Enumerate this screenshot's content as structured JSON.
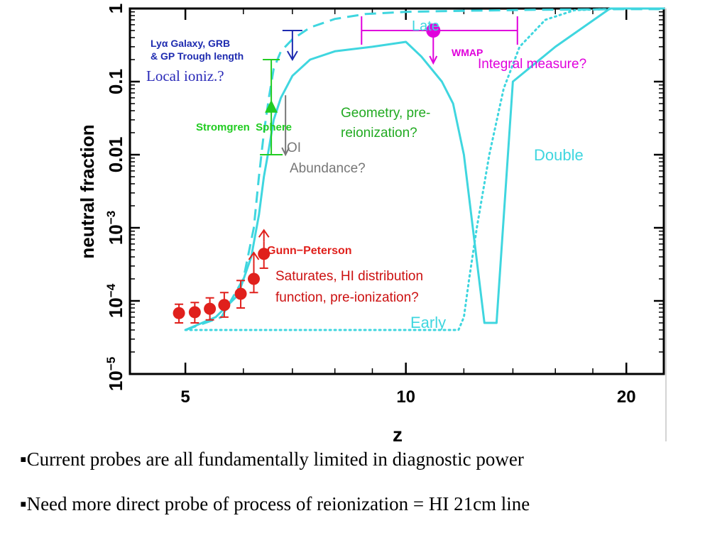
{
  "chart_data": {
    "type": "line",
    "xlabel": "z",
    "ylabel": "neutral fraction",
    "y_scale": "log",
    "x_scale": "log",
    "xlim": [
      4.2,
      22.5
    ],
    "ylim": [
      1e-05,
      1
    ],
    "x_ticks": [
      {
        "value": 5,
        "label": "5"
      },
      {
        "value": 10,
        "label": "10"
      },
      {
        "value": 20,
        "label": "20"
      }
    ],
    "y_ticks": [
      {
        "value": 1,
        "label": "1",
        "sup": ""
      },
      {
        "value": 0.1,
        "label": "0.1",
        "sup": ""
      },
      {
        "value": 0.01,
        "label": "0.01",
        "sup": ""
      },
      {
        "value": 0.001,
        "label": "10",
        "sup": "−3"
      },
      {
        "value": 0.0001,
        "label": "10",
        "sup": "−4"
      },
      {
        "value": 1e-05,
        "label": "10",
        "sup": "−5"
      }
    ],
    "series": [
      {
        "name": "Late",
        "style": "dashed",
        "color": "#3fd6df",
        "x": [
          5,
          5.6,
          6.0,
          6.2,
          6.3,
          6.4,
          6.5,
          6.6,
          6.75,
          7.0,
          7.4,
          8.0,
          8.8,
          10,
          12,
          15,
          20,
          22.5
        ],
        "y": [
          4e-05,
          6e-05,
          0.0002,
          0.001,
          0.005,
          0.02,
          0.06,
          0.15,
          0.26,
          0.38,
          0.55,
          0.72,
          0.84,
          0.9,
          0.93,
          0.96,
          0.98,
          0.98
        ]
      },
      {
        "name": "Double",
        "style": "solid",
        "color": "#3fd6df",
        "x": [
          5,
          5.5,
          5.9,
          6.15,
          6.3,
          6.4,
          6.5,
          6.6,
          6.75,
          7.0,
          7.4,
          8.0,
          9.0,
          10.0,
          10.5,
          11.2,
          11.6,
          12.0,
          12.8,
          13.3,
          14.0,
          16.0,
          19.0,
          22.5
        ],
        "y": [
          4e-05,
          6e-05,
          0.00012,
          0.0004,
          0.0015,
          0.005,
          0.012,
          0.03,
          0.06,
          0.12,
          0.2,
          0.26,
          0.3,
          0.35,
          0.22,
          0.1,
          0.05,
          0.01,
          5e-05,
          5e-05,
          0.1,
          0.3,
          1,
          1
        ]
      },
      {
        "name": "Early",
        "style": "dotted",
        "color": "#3fd6df",
        "x": [
          5,
          7,
          10,
          11.8,
          12.0,
          12.2,
          12.5,
          13.0,
          13.6,
          14.3,
          15.5,
          17,
          20,
          22.5
        ],
        "y": [
          4e-05,
          4e-05,
          4e-05,
          4e-05,
          6e-05,
          0.0002,
          0.001,
          0.01,
          0.08,
          0.3,
          0.7,
          0.95,
          1,
          1
        ]
      }
    ],
    "gunn_peterson": {
      "name": "Gunn−Peterson",
      "color": "#e0201c",
      "points": [
        {
          "z": 4.9,
          "y": 6.8e-05,
          "lo": 5e-05,
          "hi": 9e-05,
          "lower_limit": false
        },
        {
          "z": 5.15,
          "y": 7e-05,
          "lo": 5e-05,
          "hi": 9.5e-05,
          "lower_limit": false
        },
        {
          "z": 5.4,
          "y": 7.8e-05,
          "lo": 5.5e-05,
          "hi": 0.00011,
          "lower_limit": false
        },
        {
          "z": 5.65,
          "y": 8.8e-05,
          "lo": 6e-05,
          "hi": 0.00013,
          "lower_limit": false
        },
        {
          "z": 5.95,
          "y": 0.000125,
          "lo": 8e-05,
          "hi": 0.00019,
          "lower_limit": false
        },
        {
          "z": 6.2,
          "y": 0.0002,
          "lo": 0.00013,
          "hi": 0.00032,
          "lower_limit": true
        },
        {
          "z": 6.4,
          "y": 0.00044,
          "lo": 0.00028,
          "hi": 0.00065,
          "lower_limit": true
        }
      ]
    },
    "wmap": {
      "name": "WMAP",
      "z": 10.9,
      "y": 0.5,
      "xerr": [
        8.7,
        14.2
      ],
      "color": "#e000dc",
      "upper_limit": true
    },
    "lya_constraint": {
      "z": 7.0,
      "y_top": 0.5,
      "y_bottom": 0.2,
      "color": "#1e2bb0"
    },
    "stromgren": {
      "z": 6.55,
      "y": 0.045,
      "y_top": 0.2,
      "y_bottom": 0.01,
      "color": "#22cc22"
    },
    "oi_marker": {
      "z": 6.85,
      "y": 0.01,
      "color": "#777777"
    }
  },
  "annotations": {
    "lya_label_1": "Lyα Galaxy, GRB",
    "lya_label_2": "& GP Trough length",
    "local_ioniz": "Local ioniz.?",
    "stromgren_label": "Stromgren  Sphere",
    "geometry_1": "Geometry, pre-",
    "geometry_2": "reionization?",
    "oi_1": "OI",
    "oi_2": "Abundance?",
    "gp_label": "Gunn−Peterson",
    "saturates_1": "Saturates, HI distribution",
    "saturates_2": "function, pre-ionization?",
    "late_label": "Late",
    "wmap_label": "WMAP",
    "integral_label": "Integral measure?",
    "double_label": "Double",
    "early_label": "Early"
  },
  "bullets": [
    "▪Current probes are all fundamentally limited in diagnostic power",
    "▪Need more direct probe of process of reionization = HI 21cm line"
  ],
  "colors": {
    "curve": "#3fd6df",
    "gp": "#e0201c",
    "wmap": "#e000dc",
    "lya": "#1e2bb0",
    "stromgren": "#22cc22",
    "oi": "#777777"
  }
}
